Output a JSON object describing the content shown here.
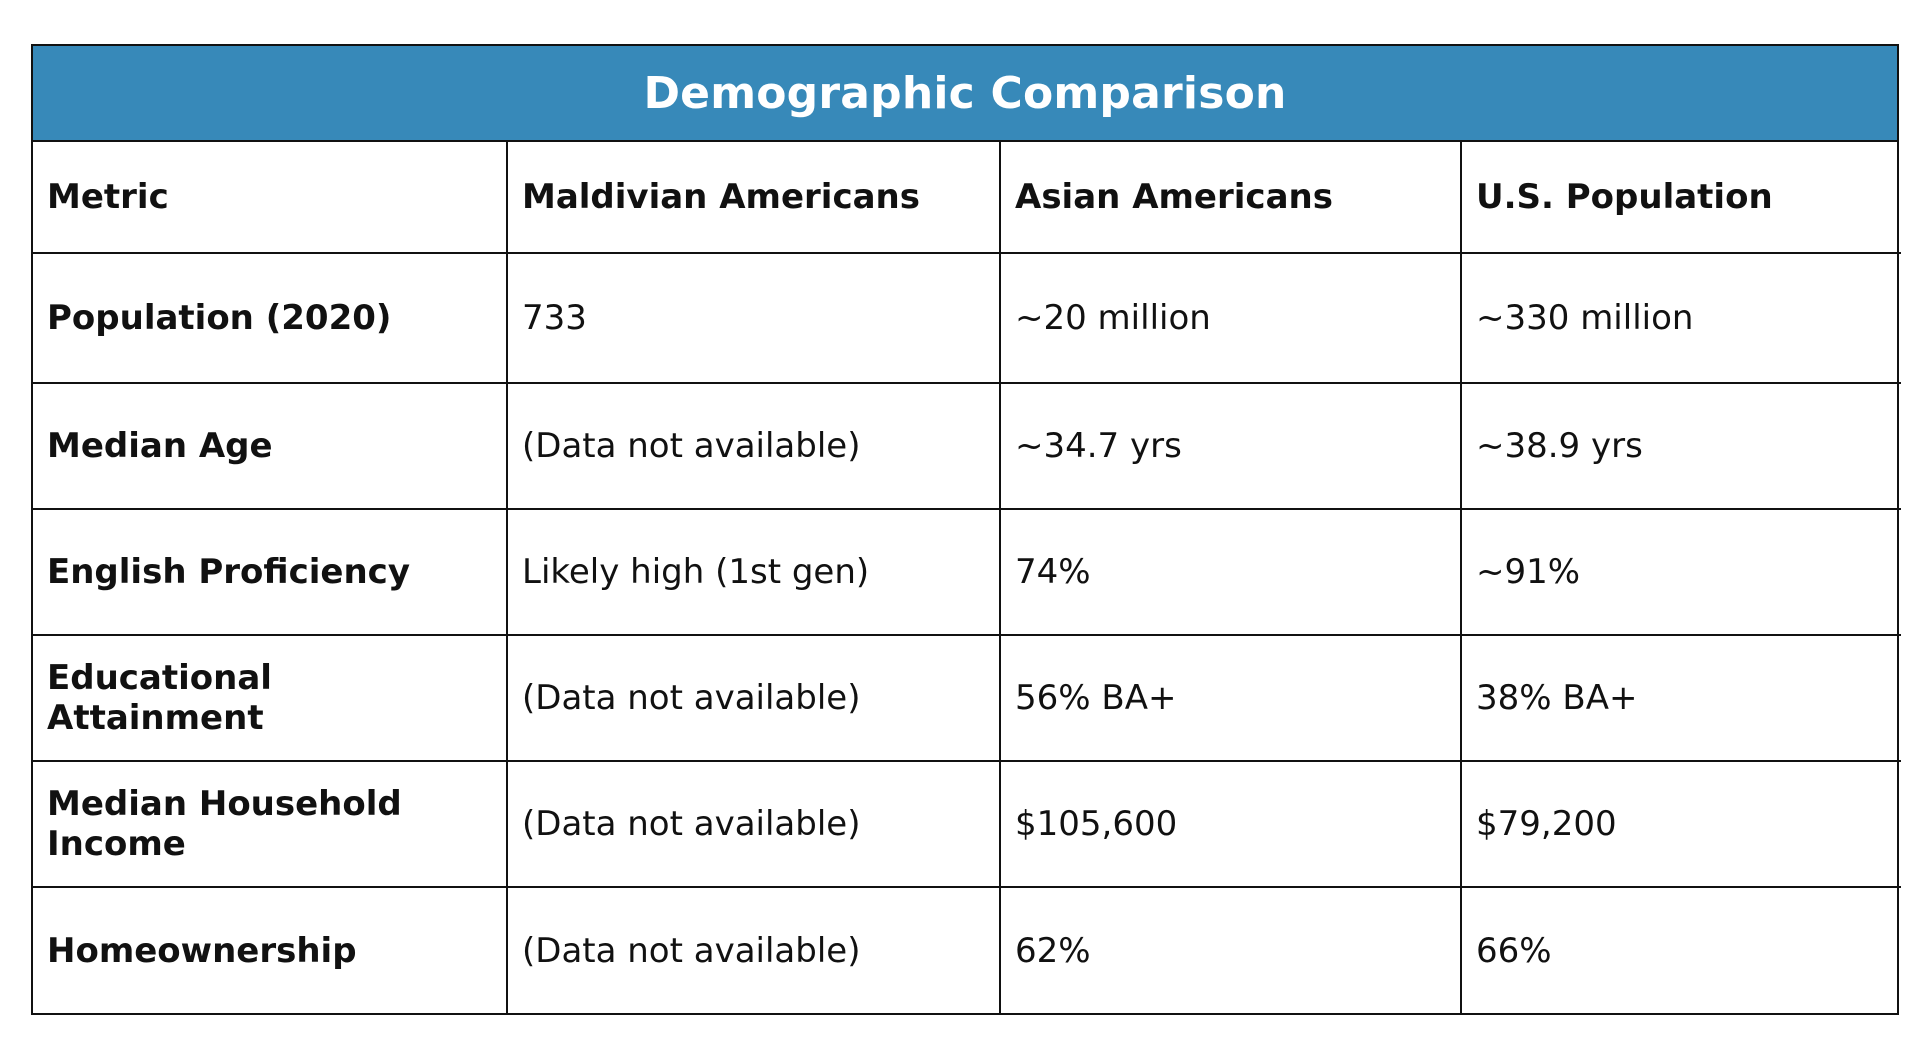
{
  "chart_data": {
    "type": "table",
    "title": "Demographic Comparison",
    "columns": [
      "Metric",
      "Maldivian Americans",
      "Asian Americans",
      "U.S. Population"
    ],
    "rows": [
      [
        "Population (2020)",
        "733",
        "~20 million",
        "~330 million"
      ],
      [
        "Median Age",
        "(Data not available)",
        "~34.7 yrs",
        "~38.9 yrs"
      ],
      [
        "English Proficiency",
        "Likely high (1st gen)",
        "74%",
        "~91%"
      ],
      [
        "Educational Attainment",
        "(Data not available)",
        "56% BA+",
        "38% BA+"
      ],
      [
        "Median Household Income",
        "(Data not available)",
        "$105,600",
        "$79,200"
      ],
      [
        "Homeownership",
        "(Data not available)",
        "62%",
        "66%"
      ]
    ]
  },
  "colors": {
    "title_bar": "#3789b9",
    "title_text": "#ffffff",
    "border": "#111111"
  }
}
